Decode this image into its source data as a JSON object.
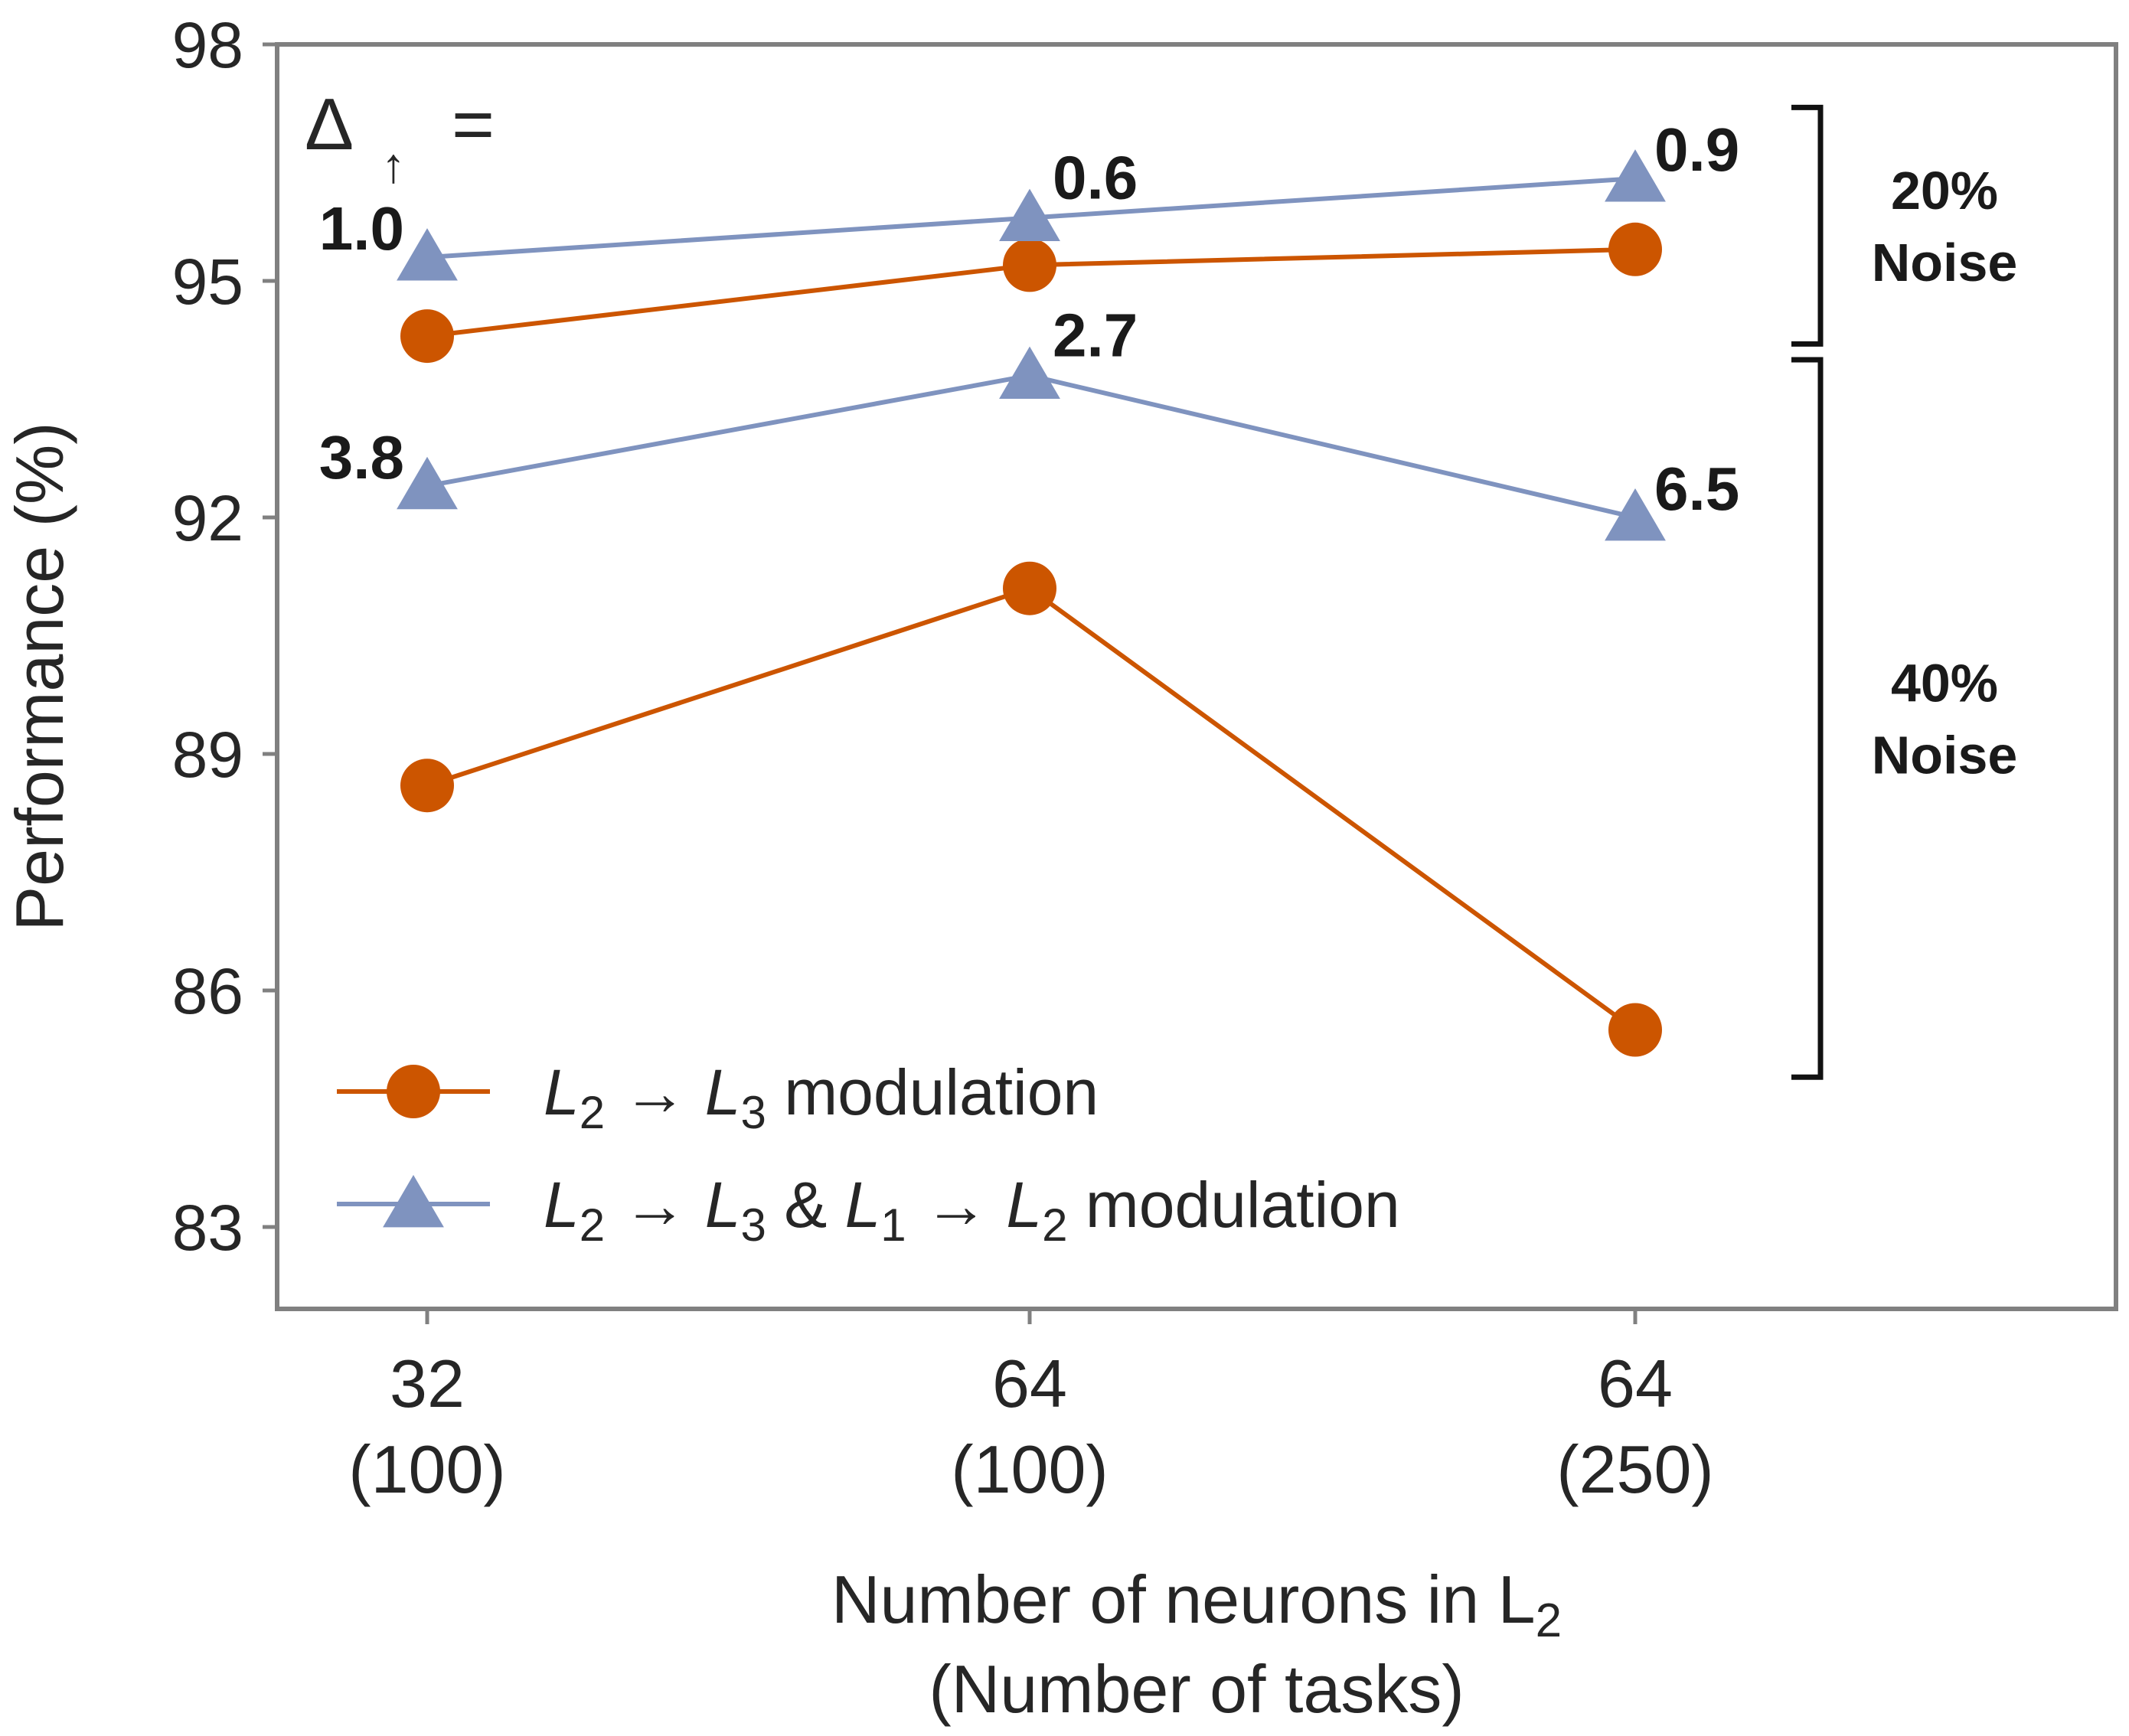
{
  "chart_data": {
    "type": "line",
    "ylabel": "Performance (%)",
    "xlabel_parts": {
      "main": "Number of neurons in L",
      "sub": "2"
    },
    "xlabel_line2": "(Number of tasks)",
    "ylim": [
      82,
      98
    ],
    "yticks": [
      "98",
      "95",
      "92",
      "89",
      "86",
      "83"
    ],
    "categories": [
      {
        "neurons": "32",
        "tasks": "(100)"
      },
      {
        "neurons": "64",
        "tasks": "(100)"
      },
      {
        "neurons": "64",
        "tasks": "(250)"
      }
    ],
    "series": [
      {
        "name": "L2 → L3 modulation (20% Noise)",
        "legend_group": "orange",
        "color": "#cc5500",
        "marker": "circle",
        "values": [
          94.3,
          95.2,
          95.4
        ]
      },
      {
        "name": "L2 → L3 & L1 → L2 modulation (20% Noise)",
        "legend_group": "blue",
        "color": "#7f93bf",
        "marker": "triangle",
        "values": [
          95.3,
          95.8,
          96.3
        ]
      },
      {
        "name": "L2 → L3 modulation (40% Noise)",
        "legend_group": "orange",
        "color": "#cc5500",
        "marker": "circle",
        "values": [
          88.6,
          91.1,
          85.5
        ]
      },
      {
        "name": "L2 → L3 & L1 → L2 modulation (40% Noise)",
        "legend_group": "blue",
        "color": "#7f93bf",
        "marker": "triangle",
        "values": [
          92.4,
          93.8,
          92.0
        ]
      }
    ],
    "delta_labels": {
      "noise20": [
        "1.0",
        "0.6",
        "0.9"
      ],
      "noise40": [
        "3.8",
        "2.7",
        "6.5"
      ]
    },
    "delta_title": {
      "symbol": "Δ",
      "arrow": "↑",
      "equals": "="
    },
    "brackets": [
      {
        "line1": "20%",
        "line2": "Noise",
        "range": [
          94.2,
          97.2
        ]
      },
      {
        "line1": "40%",
        "line2": "Noise",
        "range": [
          84.9,
          94.0
        ]
      }
    ],
    "legend": [
      {
        "color": "#cc5500",
        "marker": "circle",
        "parts": [
          {
            "t": "L",
            "i": true
          },
          {
            "t": "2",
            "sub": true
          },
          {
            "t": " → "
          },
          {
            "t": "L",
            "i": true
          },
          {
            "t": "3",
            "sub": true
          },
          {
            "t": " modulation"
          }
        ]
      },
      {
        "color": "#7f93bf",
        "marker": "triangle",
        "parts": [
          {
            "t": "L",
            "i": true
          },
          {
            "t": "2",
            "sub": true
          },
          {
            "t": " → "
          },
          {
            "t": "L",
            "i": true
          },
          {
            "t": "3",
            "sub": true
          },
          {
            "t": " & "
          },
          {
            "t": "L",
            "i": true
          },
          {
            "t": "1",
            "sub": true
          },
          {
            "t": " → "
          },
          {
            "t": "L",
            "i": true
          },
          {
            "t": "2",
            "sub": true
          },
          {
            "t": " modulation"
          }
        ]
      }
    ]
  }
}
